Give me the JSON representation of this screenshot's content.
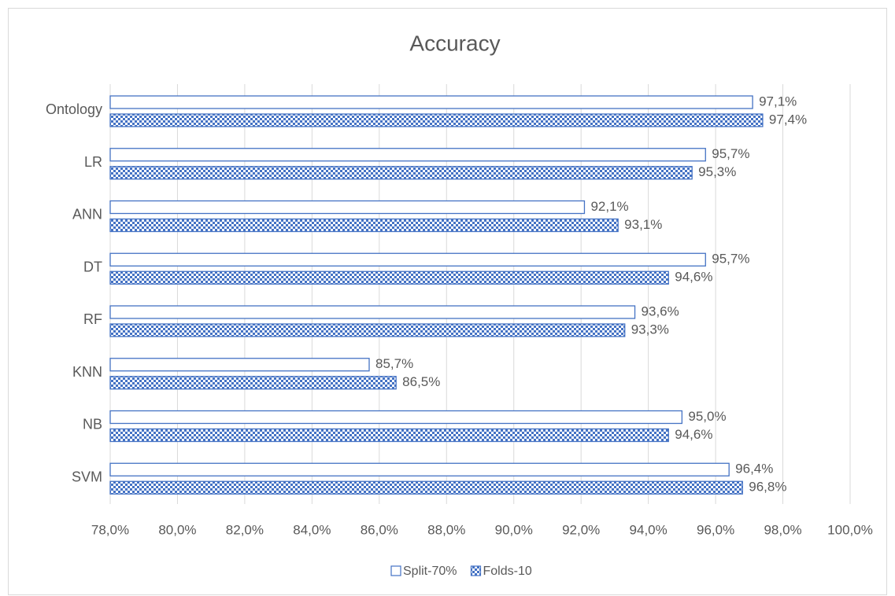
{
  "chart_data": {
    "type": "hbar",
    "title": "Accuracy",
    "categories": [
      "Ontology",
      "LR",
      "ANN",
      "DT",
      "RF",
      "KNN",
      "NB",
      "SVM"
    ],
    "series": [
      {
        "name": "Split-70%",
        "color": "#4472c4",
        "values": [
          97.1,
          95.7,
          92.1,
          95.7,
          93.6,
          85.7,
          95.0,
          96.4
        ],
        "value_labels": [
          "97,1%",
          "95,7%",
          "92,1%",
          "95,7%",
          "93,6%",
          "85,7%",
          "95,0%",
          "96,4%"
        ]
      },
      {
        "name": "Folds-10",
        "color": "#4472c4",
        "values": [
          97.4,
          95.3,
          93.1,
          94.6,
          93.3,
          86.5,
          94.6,
          96.8
        ],
        "value_labels": [
          "97,4%",
          "95,3%",
          "93,1%",
          "94,6%",
          "93,3%",
          "86,5%",
          "94,6%",
          "96,8%"
        ]
      }
    ],
    "xlim": [
      78,
      100
    ],
    "xticks": [
      {
        "value": 78,
        "label": "78,0%"
      },
      {
        "value": 80,
        "label": "80,0%"
      },
      {
        "value": 82,
        "label": "82,0%"
      },
      {
        "value": 84,
        "label": "84,0%"
      },
      {
        "value": 86,
        "label": "86,0%"
      },
      {
        "value": 88,
        "label": "88,0%"
      },
      {
        "value": 90,
        "label": "90,0%"
      },
      {
        "value": 92,
        "label": "92,0%"
      },
      {
        "value": 94,
        "label": "94,0%"
      },
      {
        "value": 96,
        "label": "96,0%"
      },
      {
        "value": 98,
        "label": "98,0%"
      },
      {
        "value": 100,
        "label": "100,0%"
      }
    ],
    "grid": true,
    "legend": "bottom"
  }
}
